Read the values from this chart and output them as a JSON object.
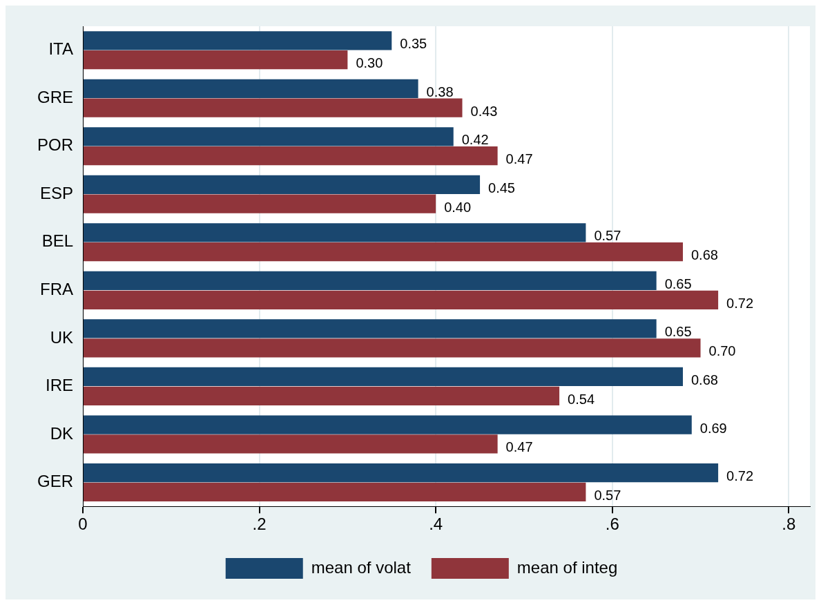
{
  "chart_data": {
    "type": "bar",
    "orientation": "horizontal",
    "categories": [
      "ITA",
      "GRE",
      "POR",
      "ESP",
      "BEL",
      "FRA",
      "UK",
      "IRE",
      "DK",
      "GER"
    ],
    "series": [
      {
        "name": "mean of volat",
        "color": "#1a476f",
        "values": [
          0.35,
          0.38,
          0.42,
          0.45,
          0.57,
          0.65,
          0.65,
          0.68,
          0.69,
          0.72
        ],
        "value_labels": [
          "0.35",
          "0.38",
          "0.42",
          "0.45",
          "0.57",
          "0.65",
          "0.65",
          "0.68",
          "0.69",
          "0.72"
        ]
      },
      {
        "name": "mean of integ",
        "color": "#90353b",
        "values": [
          0.3,
          0.43,
          0.47,
          0.4,
          0.68,
          0.72,
          0.7,
          0.54,
          0.47,
          0.57
        ],
        "value_labels": [
          "0.30",
          "0.43",
          "0.47",
          "0.40",
          "0.68",
          "0.72",
          "0.70",
          "0.54",
          "0.47",
          "0.57"
        ]
      }
    ],
    "xlim": [
      0,
      0.824
    ],
    "xticks": [
      0,
      {
        "value": 0.2,
        "label": ".2"
      },
      {
        "value": 0.4,
        "label": ".4"
      },
      {
        "value": 0.6,
        "label": ".6"
      },
      {
        "value": 0.8,
        "label": ".8"
      }
    ],
    "grid": "x",
    "legend": "bottom"
  }
}
